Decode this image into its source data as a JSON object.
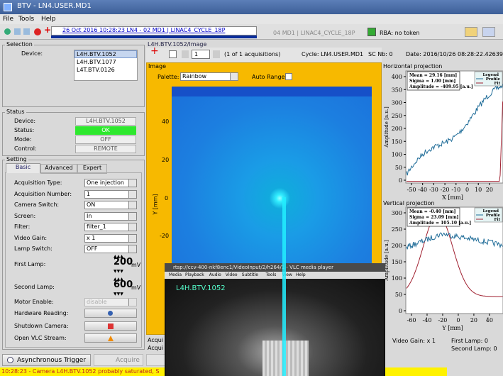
{
  "window": {
    "title": "BTV - LN4.USER.MD1",
    "menu": [
      "File",
      "Tools",
      "Help"
    ]
  },
  "toolbar": {
    "selected_cycle": "26 Oct 2016  10:28:23  LN4 - 02 MD1  |  LINAC4_CYCLE_18P",
    "cycle": "04 MD1 | LINAC4_CYCLE_18P",
    "rba": "RBA: no token"
  },
  "selection": {
    "title": "Selection",
    "label": "Device:",
    "devices": [
      "L4H.BTV.1052",
      "L4H.BTV.1077",
      "L4T.BTV.0126"
    ]
  },
  "status": {
    "title": "Status",
    "rows": [
      [
        "Device:",
        "L4H.BTV.1052"
      ],
      [
        "Status:",
        "OK"
      ],
      [
        "Mode:",
        "OFF"
      ],
      [
        "Control:",
        "REMOTE"
      ]
    ]
  },
  "setting": {
    "title": "Setting",
    "tabs": [
      "Basic",
      "Advanced",
      "Expert"
    ],
    "rows": [
      [
        "Acquisition Type:",
        "One injection"
      ],
      [
        "Acquisition Number:",
        "1"
      ],
      [
        "Camera Switch:",
        "ON"
      ],
      [
        "Screen:",
        "In"
      ],
      [
        "Filter:",
        "filter_1"
      ],
      [
        "Video Gain:",
        "x 1"
      ],
      [
        "Lamp Switch:",
        "OFF"
      ]
    ],
    "first_lamp": {
      "label": "First Lamp:",
      "value": 200,
      "unit": "mV"
    },
    "second_lamp": {
      "label": "Second Lamp:",
      "value": 600,
      "unit": "mV"
    },
    "motor": {
      "label": "Motor Enable:",
      "value": "disable"
    },
    "buttons": [
      "Hardware Reading:",
      "Shutdown Camera:",
      "Open VLC Stream:"
    ]
  },
  "bottom": {
    "trigger": "Asynchronous Trigger",
    "acquire": "Acquire",
    "status_message": "10:28:23 - Camera L4H.BTV.1052 probably saturated, S"
  },
  "image": {
    "header": "L4H.BTV.1052/Image",
    "index": "1",
    "acquisitions": "(1 of 1 acquisitions)",
    "cycle": "Cycle: LN4.USER.MD1",
    "sc": "SC Nb: 0",
    "date": "Date: 2016/10/26 08:28:22.426390",
    "panel": "Image",
    "palette_label": "Palette:",
    "palette": "Rainbow",
    "auto_range": "Auto Range:",
    "y_label": "Y [mm]",
    "y_ticks": [
      40,
      20,
      0,
      -20
    ],
    "acq": [
      "Acqui",
      "Acqui"
    ]
  },
  "h_proj": {
    "title": "Horizontal projection",
    "stats": [
      "Mean = 29.16 [mm]",
      "Sigma = 1.00 [mm]",
      "Amplitude = -409.95 [a.u.]"
    ],
    "legend": [
      "Legend",
      "Profile",
      "Fit"
    ],
    "y_label": "Amplitude [a.u.]",
    "y_ticks": [
      400,
      350,
      300,
      250,
      200,
      150,
      100,
      50,
      0
    ],
    "x_ticks": [
      -50,
      -40,
      -30,
      -20,
      -10,
      0,
      10,
      20
    ],
    "x_label": "X [mm]"
  },
  "v_proj": {
    "title": "Vertical projection",
    "stats": [
      "Mean = -0.40 [mm]",
      "Sigma = 23.09 [mm]",
      "Amplitude = 105.10 [a.u.]"
    ],
    "legend": [
      "Legend",
      "Profile",
      "Fit"
    ],
    "y_label": "Amplitude [a.u.]",
    "y_ticks": [
      300,
      250,
      200,
      150,
      100,
      50,
      0
    ],
    "x_ticks": [
      -60,
      -40,
      -20,
      0,
      20,
      40
    ],
    "x_label": "Y [mm]"
  },
  "readout": {
    "video_gain": "Video Gain: x 1",
    "first_lamp": "First Lamp: 0",
    "second_lamp": "Second Lamp: 0"
  },
  "vlc": {
    "title": "rtsp://ccv-400-nkf8enc1/VideoInput/2/h264/1 - VLC media player",
    "menu": [
      "Media",
      "Playback",
      "Audio",
      "Video",
      "Subtitle",
      "Tools",
      "View",
      "Help"
    ],
    "overlay": "L4H.BTV.1052"
  }
}
